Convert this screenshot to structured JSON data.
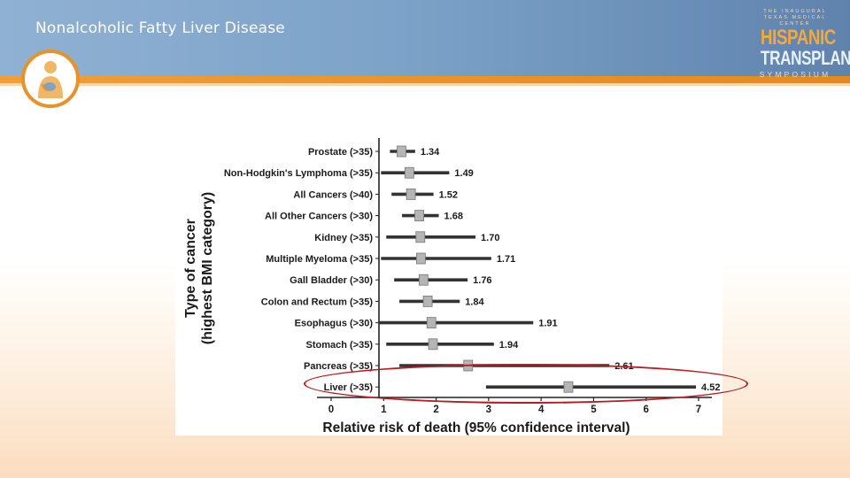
{
  "header": {
    "title": "Nonalcoholic Fatty Liver Disease",
    "brand": {
      "line1": "THE INAUGURAL",
      "line2": "TEXAS MEDICAL CENTER",
      "word1": "HISPANIC",
      "word2": "TRANSPLANT",
      "word3": "SYMPOSIUM"
    }
  },
  "colors": {
    "header": "#7ea3c9",
    "accent": "#f0a030",
    "bar": "#333333",
    "marker": "#b5b5b5",
    "highlight": "#b81c22"
  },
  "chart_data": {
    "type": "forest",
    "title": "",
    "xlabel": "Relative risk of death (95% confidence interval)",
    "ylabel": "Type of cancer\n(highest BMI category)",
    "xlim": [
      0,
      7
    ],
    "xticks": [
      0,
      1,
      2,
      3,
      4,
      5,
      6,
      7
    ],
    "rows": [
      {
        "label": "Prostate (>35)",
        "value": 1.34,
        "ci": [
          1.12,
          1.6
        ],
        "value_label": "1.34"
      },
      {
        "label": "Non-Hodgkin's Lymphoma (>35)",
        "value": 1.49,
        "ci": [
          0.95,
          2.25
        ],
        "value_label": "1.49"
      },
      {
        "label": "All Cancers (>40)",
        "value": 1.52,
        "ci": [
          1.15,
          1.95
        ],
        "value_label": "1.52"
      },
      {
        "label": "All Other Cancers (>30)",
        "value": 1.68,
        "ci": [
          1.35,
          2.05
        ],
        "value_label": "1.68"
      },
      {
        "label": "Kidney (>35)",
        "value": 1.7,
        "ci": [
          1.05,
          2.75
        ],
        "value_label": "1.70"
      },
      {
        "label": "Multiple Myeloma (>35)",
        "value": 1.71,
        "ci": [
          0.95,
          3.05
        ],
        "value_label": "1.71"
      },
      {
        "label": "Gall Bladder (>30)",
        "value": 1.76,
        "ci": [
          1.2,
          2.6
        ],
        "value_label": "1.76"
      },
      {
        "label": "Colon and Rectum (>35)",
        "value": 1.84,
        "ci": [
          1.3,
          2.45
        ],
        "value_label": "1.84"
      },
      {
        "label": "Esophagus (>30)",
        "value": 1.91,
        "ci": [
          0.9,
          3.85
        ],
        "value_label": "1.91"
      },
      {
        "label": "Stomach (>35)",
        "value": 1.94,
        "ci": [
          1.05,
          3.1
        ],
        "value_label": "1.94"
      },
      {
        "label": "Pancreas (>35)",
        "value": 2.61,
        "ci": [
          1.3,
          5.3
        ],
        "value_label": "2.61"
      },
      {
        "label": "Liver (>35)",
        "value": 4.52,
        "ci": [
          2.95,
          6.95
        ],
        "value_label": "4.52"
      }
    ],
    "highlighted_row": "Liver (>35)"
  }
}
